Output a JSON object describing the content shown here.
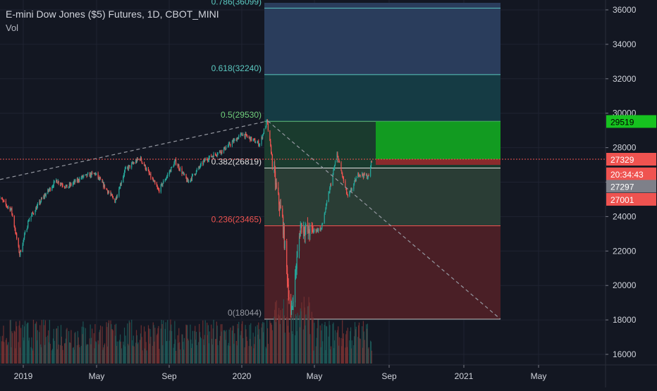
{
  "header": {
    "title": "E-mini Dow Jones ($5) Futures, 1D, CBOT_MINI",
    "volume_label": "Vol"
  },
  "colors": {
    "background": "#131722",
    "candle_up": "#26a69a",
    "candle_down": "#ef5350",
    "fib_top": "#2a3d5c",
    "fib_mid": "#153b44",
    "fib_upper_green": "#1a3b2e",
    "fib_lower_green": "#2a3d35",
    "fib_red": "#4a1f26",
    "target_zone": "#129b21",
    "stop_zone": "#8a2a2c",
    "price_line": "#ef5350"
  },
  "chart_data": {
    "type": "candlestick",
    "symbol": "E-mini Dow Jones ($5) Futures",
    "interval": "1D",
    "exchange": "CBOT_MINI",
    "y_axis": {
      "min": 16000,
      "max": 36000,
      "ticks": [
        16000,
        18000,
        20000,
        22000,
        24000,
        26000,
        28000,
        30000,
        32000,
        34000,
        36000
      ]
    },
    "x_axis": {
      "ticks": [
        "2019",
        "May",
        "Sep",
        "2020",
        "May",
        "Sep",
        "2021",
        "May"
      ]
    },
    "fibonacci": [
      {
        "label": "0.786(36099)",
        "level": 0.786,
        "price": 36099
      },
      {
        "label": "0.618(32240)",
        "level": 0.618,
        "price": 32240
      },
      {
        "label": "0.5(29530)",
        "level": 0.5,
        "price": 29530
      },
      {
        "label": "0.382(26819)",
        "level": 0.382,
        "price": 26819
      },
      {
        "label": "0.236(23465)",
        "level": 0.236,
        "price": 23465
      },
      {
        "label": "0(18044)",
        "level": 0,
        "price": 18044
      }
    ],
    "price_tags": [
      {
        "text": "29519",
        "price": 29519,
        "kind": "target"
      },
      {
        "text": "27329",
        "price": 27329,
        "kind": "last"
      },
      {
        "text": "20:34:43",
        "price": 26480,
        "kind": "countdown"
      },
      {
        "text": "27297",
        "price": 25760,
        "kind": "neutral"
      },
      {
        "text": "27001",
        "price": 25000,
        "kind": "stop"
      }
    ],
    "position_zones": {
      "target_price": 29519,
      "entry_price": 27329,
      "stop_price": 27001
    },
    "price_path": [
      [
        "2018-11-20",
        25200
      ],
      [
        "2018-12-05",
        24600
      ],
      [
        "2018-12-12",
        24400
      ],
      [
        "2018-12-26",
        21800
      ],
      [
        "2019-01-10",
        23800
      ],
      [
        "2019-02-01",
        25000
      ],
      [
        "2019-02-25",
        26100
      ],
      [
        "2019-03-15",
        25700
      ],
      [
        "2019-04-10",
        26300
      ],
      [
        "2019-05-01",
        26500
      ],
      [
        "2019-06-03",
        24900
      ],
      [
        "2019-06-20",
        26700
      ],
      [
        "2019-07-15",
        27400
      ],
      [
        "2019-08-15",
        25500
      ],
      [
        "2019-09-12",
        27200
      ],
      [
        "2019-10-03",
        26000
      ],
      [
        "2019-11-01",
        27300
      ],
      [
        "2019-12-02",
        27900
      ],
      [
        "2020-01-02",
        28800
      ],
      [
        "2020-01-31",
        28200
      ],
      [
        "2020-02-12",
        29550
      ],
      [
        "2020-02-28",
        25500
      ],
      [
        "2020-03-09",
        23800
      ],
      [
        "2020-03-23",
        18100
      ],
      [
        "2020-04-08",
        23500
      ],
      [
        "2020-04-20",
        23100
      ],
      [
        "2020-05-13",
        23300
      ],
      [
        "2020-06-08",
        27600
      ],
      [
        "2020-06-26",
        25100
      ],
      [
        "2020-07-14",
        26500
      ],
      [
        "2020-07-31",
        26300
      ],
      [
        "2020-08-05",
        27330
      ]
    ]
  }
}
